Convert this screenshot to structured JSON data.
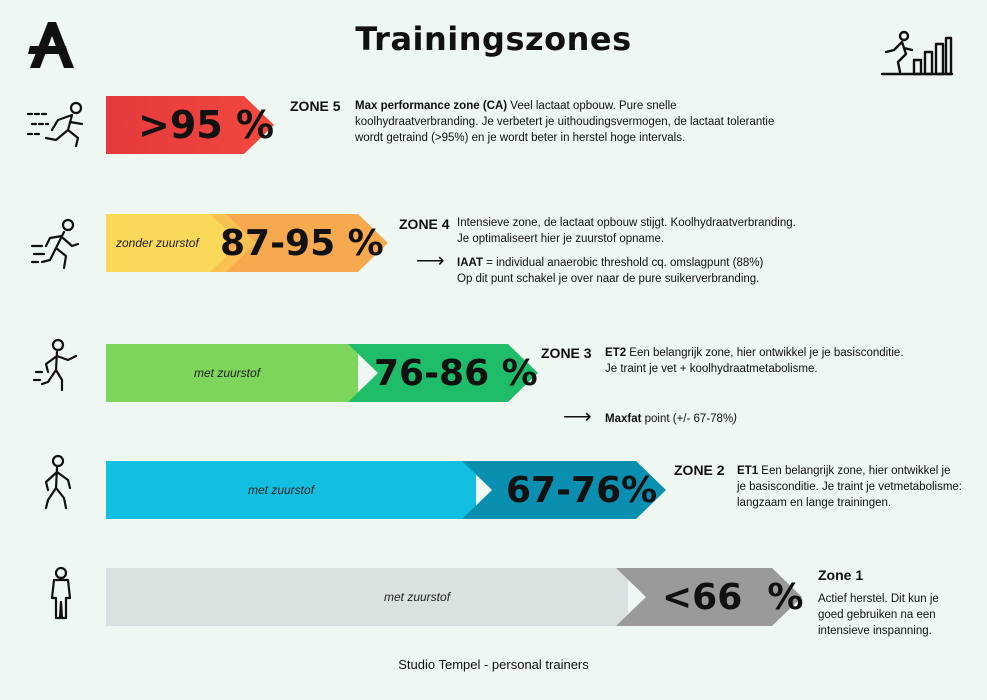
{
  "page": {
    "title": "Trainingszones",
    "footer": "Studio Tempel - personal trainers"
  },
  "icons": {
    "logo": "letter-a-logo-icon",
    "top_right": "runner-bar-chart-icon",
    "zone5": "sprinting-runner-icon",
    "zone4": "running-person-icon",
    "zone3": "jogging-person-icon",
    "zone2": "walking-person-icon",
    "zone1": "standing-person-icon"
  },
  "colors": {
    "zone5": "#e8433f",
    "zone4_light": "#f9d85a",
    "zone4_dark": "#f6a94e",
    "zone3_light": "#7ed55c",
    "zone3_dark": "#1fbd6a",
    "zone2_light": "#13bfe0",
    "zone2_dark": "#0b8fb0",
    "zone1_light": "#d9e1e1",
    "zone1_dark": "#9a9a9a"
  },
  "zones": {
    "z5": {
      "pct": ">95 %",
      "name": "ZONE 5",
      "lead": "Max performance zone (CA)",
      "desc1": " Veel lactaat opbouw. Pure snelle",
      "desc2": "koolhydraatverbranding. Je verbetert je uithoudingsvermogen, de lactaat tolerantie",
      "desc3": "wordt getraind (>95%) en je wordt beter in herstel hoge intervals."
    },
    "z4": {
      "label": "zonder zuurstof",
      "pct": "87-95 %",
      "name": "ZONE 4",
      "desc1": "Intensieve zone, de lactaat opbouw stijgt. Koolhydraatverbranding.",
      "desc2": "Je optimaliseert hier je zuurstof opname.",
      "arrow": "⟶",
      "note_lead": "IAAT",
      "note1": " = individual anaerobic threshold  cq. omslagpunt  (88%)",
      "note2": "Op dit punt schakel je over naar de pure suikerverbranding."
    },
    "z3": {
      "label": "met zuurstof",
      "pct": "76-86 %",
      "name": "ZONE 3",
      "lead": "ET2",
      "desc1": " Een belangrijk zone, hier ontwikkel je je basisconditie.",
      "desc2": "Je traint je vet + koolhydraatmetabolisme.",
      "arrow": "⟶",
      "note_lead": "Maxfat",
      "note1": " point (+/- 67-78%",
      "note2": ")"
    },
    "z2": {
      "label": "met zuurstof",
      "pct": "67-76%",
      "name": "ZONE 2",
      "lead": "ET1",
      "desc1": " Een belangrijk zone, hier ontwikkel je",
      "desc2": "je basisconditie. Je traint je vetmetabolisme:",
      "desc3": "langzaam en lange trainingen."
    },
    "z1": {
      "label": "met zuurstof",
      "pct": "<66  %",
      "name": "Zone 1",
      "desc1": "Actief herstel. Dit kun je",
      "desc2": "goed gebruiken na een",
      "desc3": "intensieve inspanning."
    }
  }
}
